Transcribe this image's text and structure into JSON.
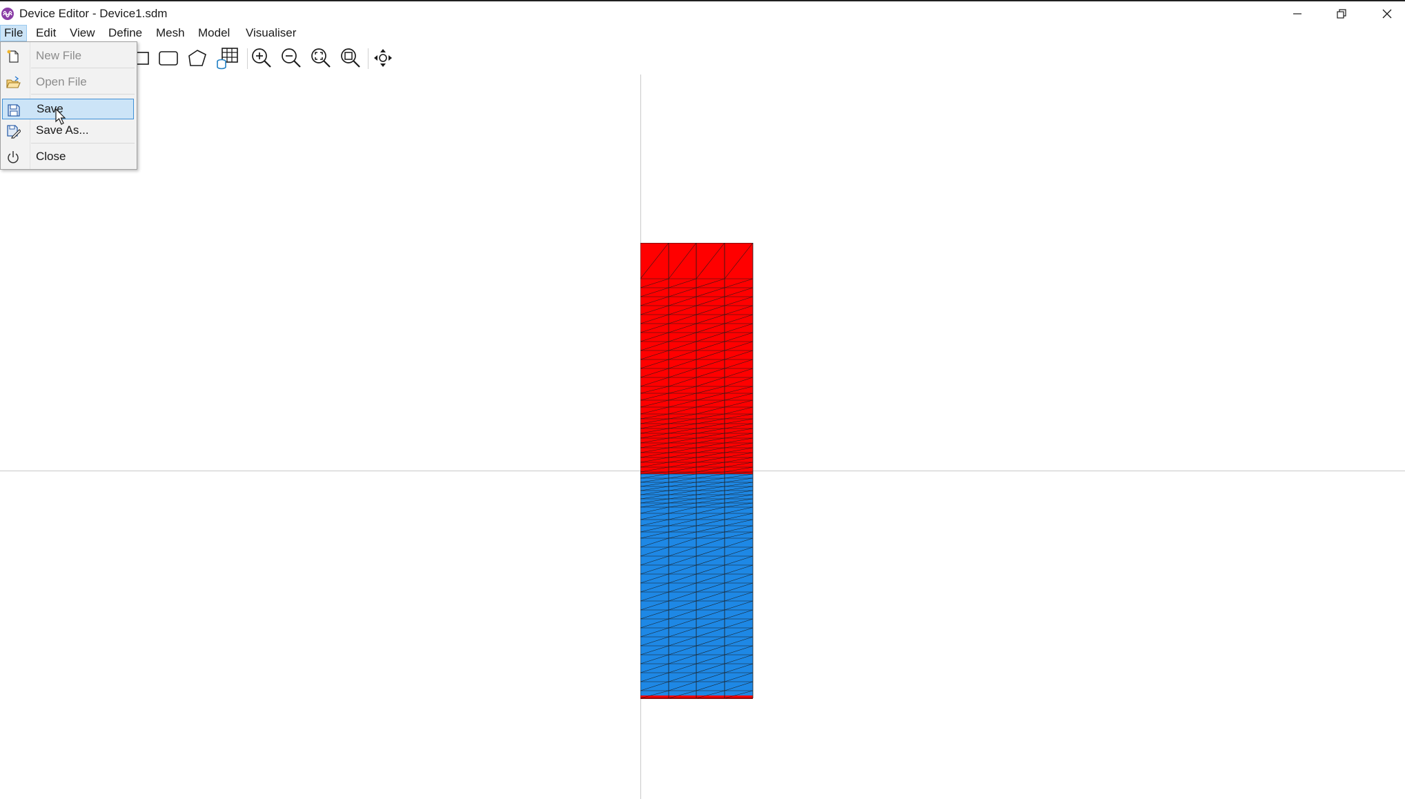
{
  "window": {
    "title": "Device Editor - Device1.sdm",
    "icon": "app-logo-icon",
    "controls": [
      "minimize-icon",
      "restore-icon",
      "close-icon"
    ]
  },
  "menubar": {
    "items": [
      {
        "label": "File",
        "active": true
      },
      {
        "label": "Edit"
      },
      {
        "label": "View"
      },
      {
        "label": "Define"
      },
      {
        "label": "Mesh"
      },
      {
        "label": "Model"
      },
      {
        "label": "Visualiser"
      }
    ]
  },
  "file_menu": {
    "items": [
      {
        "label": "New File",
        "icon": "new-file-icon",
        "enabled": false
      },
      {
        "label": "Open File",
        "icon": "open-folder-icon",
        "enabled": false
      },
      {
        "label": "Save",
        "icon": "floppy-disk-icon",
        "enabled": true,
        "hovered": true
      },
      {
        "label": "Save As...",
        "icon": "save-as-icon",
        "enabled": true
      },
      {
        "label": "Close",
        "icon": "power-icon",
        "enabled": true
      }
    ]
  },
  "toolbar": {
    "tools": [
      "rectangle-icon",
      "rounded-rectangle-icon",
      "polygon-icon",
      "database-grid-icon",
      "zoom-in-icon",
      "zoom-out-icon",
      "zoom-fit-icon",
      "zoom-region-icon",
      "pan-icon"
    ]
  },
  "canvas": {
    "regions": [
      {
        "name": "upper-region",
        "color": "#ff0000"
      },
      {
        "name": "lower-region",
        "color": "#1e88e5"
      }
    ],
    "mesh_line_color": "#1a1a1a",
    "axis_color": "#c8c8c8"
  }
}
